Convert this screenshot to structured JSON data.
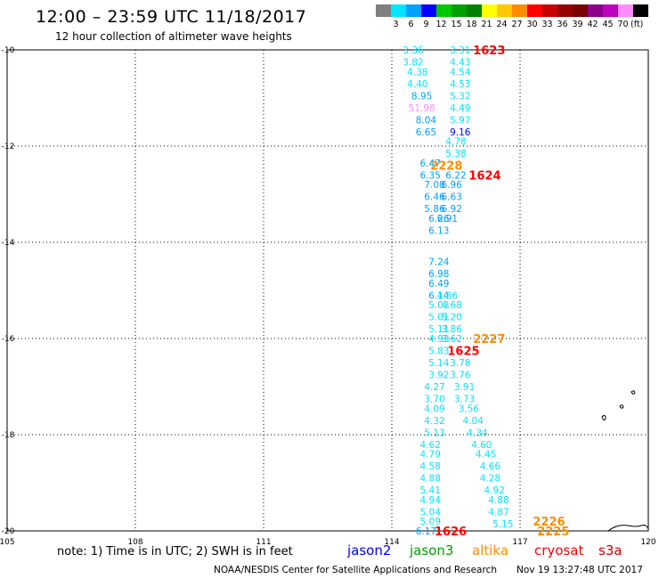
{
  "title": "12:00 – 23:59 UTC 11/18/2017",
  "subtitle": "12 hour collection of altimeter wave heights",
  "legend": {
    "unit": "(ft)",
    "colors": [
      "#7f7f7f",
      "#00e5ff",
      "#00a0ff",
      "#0000ff",
      "#00c800",
      "#00a000",
      "#008200",
      "#ffff00",
      "#ffc800",
      "#ff8c00",
      "#ff0000",
      "#c80000",
      "#960000",
      "#7a0000",
      "#8c008c",
      "#c000c0",
      "#ff8cff",
      "#000000"
    ],
    "labels": [
      "3",
      "6",
      "9",
      "12",
      "15",
      "18",
      "21",
      "24",
      "27",
      "30",
      "33",
      "36",
      "39",
      "42",
      "45",
      "70"
    ]
  },
  "axes": {
    "x_ticks": [
      "105",
      "108",
      "111",
      "114",
      "117",
      "120"
    ],
    "y_ticks": [
      "-10",
      "-12",
      "-14",
      "-16",
      "-18",
      "-20"
    ]
  },
  "note": "note: 1) Time is in UTC; 2) SWH is in feet",
  "satellites": [
    {
      "name": "jason2",
      "color": "#0000ff"
    },
    {
      "name": "jason3",
      "color": "#00a000"
    },
    {
      "name": "altika",
      "color": "#ff8c00"
    },
    {
      "name": "cryosat",
      "color": "#ff0000"
    },
    {
      "name": "s3a",
      "color": "#c80000"
    }
  ],
  "credit": "NOAA/NESDIS Center for Satellite Applications and Research",
  "timestamp": "Nov 19 13:27:48 UTC 2017",
  "track_times": [
    {
      "text": "1623",
      "lon": 115.9,
      "lat": -10.0,
      "color": "#ff0000"
    },
    {
      "text": "1624",
      "lon": 115.8,
      "lat": -12.6,
      "color": "#ff0000"
    },
    {
      "text": "2228",
      "lon": 114.9,
      "lat": -12.4,
      "color": "#ff8c00"
    },
    {
      "text": "2227",
      "lon": 115.9,
      "lat": -16.0,
      "color": "#ff8c00"
    },
    {
      "text": "1625",
      "lon": 115.3,
      "lat": -16.25,
      "color": "#ff0000"
    },
    {
      "text": "2226",
      "lon": 117.3,
      "lat": -19.8,
      "color": "#ff8c00"
    },
    {
      "text": "1626",
      "lon": 115.0,
      "lat": -20.0,
      "color": "#ff0000"
    },
    {
      "text": "2225",
      "lon": 117.4,
      "lat": -20.0,
      "color": "#ff8c00"
    }
  ],
  "chart_data": {
    "type": "scatter",
    "xlim": [
      105,
      120
    ],
    "ylim": [
      -20,
      -10
    ],
    "grid": true,
    "series": [
      {
        "values": [
          {
            "lon": 114.5,
            "lat": -10.0,
            "v": "3.36",
            "c": "#00e5ff"
          },
          {
            "lon": 114.5,
            "lat": -10.25,
            "v": "3.82",
            "c": "#00e5ff"
          },
          {
            "lon": 114.6,
            "lat": -10.45,
            "v": "4.38",
            "c": "#00e5ff"
          },
          {
            "lon": 114.6,
            "lat": -10.7,
            "v": "4.40",
            "c": "#00e5ff"
          },
          {
            "lon": 114.7,
            "lat": -10.95,
            "v": "8.95",
            "c": "#00a0ff"
          },
          {
            "lon": 114.7,
            "lat": -11.2,
            "v": "51.98",
            "c": "#ff8cff"
          },
          {
            "lon": 114.8,
            "lat": -11.45,
            "v": "8.04",
            "c": "#00a0ff"
          },
          {
            "lon": 114.8,
            "lat": -11.7,
            "v": "6.65",
            "c": "#00a0ff"
          },
          {
            "lon": 114.9,
            "lat": -12.35,
            "v": "6.47",
            "c": "#00a0ff"
          },
          {
            "lon": 114.9,
            "lat": -12.6,
            "v": "6.35",
            "c": "#00a0ff"
          },
          {
            "lon": 115.0,
            "lat": -12.8,
            "v": "7.08",
            "c": "#00a0ff"
          },
          {
            "lon": 115.0,
            "lat": -13.05,
            "v": "6.46",
            "c": "#00a0ff"
          },
          {
            "lon": 115.0,
            "lat": -13.3,
            "v": "5.86",
            "c": "#00a0ff"
          },
          {
            "lon": 115.1,
            "lat": -13.5,
            "v": "6.26",
            "c": "#00a0ff"
          },
          {
            "lon": 115.1,
            "lat": -13.75,
            "v": "6.13",
            "c": "#00a0ff"
          },
          {
            "lon": 115.1,
            "lat": -14.4,
            "v": "7.24",
            "c": "#00a0ff"
          },
          {
            "lon": 115.1,
            "lat": -14.65,
            "v": "6.98",
            "c": "#00a0ff"
          },
          {
            "lon": 115.1,
            "lat": -14.85,
            "v": "6.49",
            "c": "#00a0ff"
          },
          {
            "lon": 115.1,
            "lat": -15.1,
            "v": "6.14",
            "c": "#00a0ff"
          },
          {
            "lon": 115.1,
            "lat": -15.3,
            "v": "5.03",
            "c": "#00e5ff"
          },
          {
            "lon": 115.1,
            "lat": -15.55,
            "v": "5.01",
            "c": "#00e5ff"
          },
          {
            "lon": 115.1,
            "lat": -15.8,
            "v": "5.11",
            "c": "#00e5ff"
          },
          {
            "lon": 115.1,
            "lat": -16.0,
            "v": "4.93",
            "c": "#00e5ff"
          },
          {
            "lon": 115.1,
            "lat": -16.25,
            "v": "5.83",
            "c": "#00e5ff"
          },
          {
            "lon": 115.1,
            "lat": -16.5,
            "v": "5.14",
            "c": "#00e5ff"
          },
          {
            "lon": 115.1,
            "lat": -16.75,
            "v": "3.92",
            "c": "#00e5ff"
          },
          {
            "lon": 115.0,
            "lat": -17.0,
            "v": "4.27",
            "c": "#00e5ff"
          },
          {
            "lon": 115.0,
            "lat": -17.25,
            "v": "3.70",
            "c": "#00e5ff"
          },
          {
            "lon": 115.0,
            "lat": -17.45,
            "v": "4.09",
            "c": "#00e5ff"
          },
          {
            "lon": 115.0,
            "lat": -17.7,
            "v": "4.32",
            "c": "#00e5ff"
          },
          {
            "lon": 115.0,
            "lat": -17.95,
            "v": "5.13",
            "c": "#00e5ff"
          },
          {
            "lon": 114.9,
            "lat": -18.2,
            "v": "4.62",
            "c": "#00e5ff"
          },
          {
            "lon": 114.9,
            "lat": -18.4,
            "v": "4.79",
            "c": "#00e5ff"
          },
          {
            "lon": 114.9,
            "lat": -18.65,
            "v": "4.58",
            "c": "#00e5ff"
          },
          {
            "lon": 114.9,
            "lat": -18.9,
            "v": "4.88",
            "c": "#00e5ff"
          },
          {
            "lon": 114.9,
            "lat": -19.15,
            "v": "5.41",
            "c": "#00e5ff"
          },
          {
            "lon": 114.9,
            "lat": -19.35,
            "v": "4.94",
            "c": "#00e5ff"
          },
          {
            "lon": 114.9,
            "lat": -19.6,
            "v": "5.04",
            "c": "#00e5ff"
          },
          {
            "lon": 114.9,
            "lat": -19.8,
            "v": "5.09",
            "c": "#00e5ff"
          },
          {
            "lon": 114.8,
            "lat": -20.0,
            "v": "6.17",
            "c": "#00a0ff"
          },
          {
            "lon": 115.6,
            "lat": -10.0,
            "v": "3.31",
            "c": "#00e5ff"
          },
          {
            "lon": 115.6,
            "lat": -10.25,
            "v": "4.43",
            "c": "#00e5ff"
          },
          {
            "lon": 115.6,
            "lat": -10.45,
            "v": "4.54",
            "c": "#00e5ff"
          },
          {
            "lon": 115.6,
            "lat": -10.7,
            "v": "4.53",
            "c": "#00e5ff"
          },
          {
            "lon": 115.6,
            "lat": -10.95,
            "v": "5.32",
            "c": "#00e5ff"
          },
          {
            "lon": 115.6,
            "lat": -11.2,
            "v": "4.49",
            "c": "#00e5ff"
          },
          {
            "lon": 115.6,
            "lat": -11.45,
            "v": "5.97",
            "c": "#00e5ff"
          },
          {
            "lon": 115.6,
            "lat": -11.7,
            "v": "9.16",
            "c": "#0000ff"
          },
          {
            "lon": 115.5,
            "lat": -11.9,
            "v": "4.78",
            "c": "#00e5ff"
          },
          {
            "lon": 115.5,
            "lat": -12.15,
            "v": "5.38",
            "c": "#00e5ff"
          },
          {
            "lon": 115.5,
            "lat": -12.6,
            "v": "6.22",
            "c": "#00a0ff"
          },
          {
            "lon": 115.4,
            "lat": -12.8,
            "v": "6.96",
            "c": "#00a0ff"
          },
          {
            "lon": 115.4,
            "lat": -13.05,
            "v": "6.63",
            "c": "#00a0ff"
          },
          {
            "lon": 115.4,
            "lat": -13.3,
            "v": "6.92",
            "c": "#00a0ff"
          },
          {
            "lon": 115.3,
            "lat": -13.5,
            "v": "6.91",
            "c": "#00a0ff"
          },
          {
            "lon": 115.3,
            "lat": -15.1,
            "v": "4.86",
            "c": "#00e5ff"
          },
          {
            "lon": 115.4,
            "lat": -15.3,
            "v": "4.68",
            "c": "#00e5ff"
          },
          {
            "lon": 115.4,
            "lat": -15.55,
            "v": "5.20",
            "c": "#00e5ff"
          },
          {
            "lon": 115.4,
            "lat": -15.8,
            "v": "3.86",
            "c": "#00e5ff"
          },
          {
            "lon": 115.4,
            "lat": -16.0,
            "v": "3.62",
            "c": "#00e5ff"
          },
          {
            "lon": 115.6,
            "lat": -16.5,
            "v": "3.78",
            "c": "#00e5ff"
          },
          {
            "lon": 115.6,
            "lat": -16.75,
            "v": "3.76",
            "c": "#00e5ff"
          },
          {
            "lon": 115.7,
            "lat": -17.0,
            "v": "3.91",
            "c": "#00e5ff"
          },
          {
            "lon": 115.7,
            "lat": -17.25,
            "v": "3.73",
            "c": "#00e5ff"
          },
          {
            "lon": 115.8,
            "lat": -17.45,
            "v": "3.56",
            "c": "#00e5ff"
          },
          {
            "lon": 115.9,
            "lat": -17.7,
            "v": "4.04",
            "c": "#00e5ff"
          },
          {
            "lon": 116.0,
            "lat": -17.95,
            "v": "4.34",
            "c": "#00e5ff"
          },
          {
            "lon": 116.1,
            "lat": -18.2,
            "v": "4.60",
            "c": "#00e5ff"
          },
          {
            "lon": 116.2,
            "lat": -18.4,
            "v": "4.45",
            "c": "#00e5ff"
          },
          {
            "lon": 116.3,
            "lat": -18.65,
            "v": "4.66",
            "c": "#00e5ff"
          },
          {
            "lon": 116.3,
            "lat": -18.9,
            "v": "4.28",
            "c": "#00e5ff"
          },
          {
            "lon": 116.4,
            "lat": -19.15,
            "v": "4.92",
            "c": "#00e5ff"
          },
          {
            "lon": 116.5,
            "lat": -19.35,
            "v": "4.88",
            "c": "#00e5ff"
          },
          {
            "lon": 116.5,
            "lat": -19.6,
            "v": "4.87",
            "c": "#00e5ff"
          },
          {
            "lon": 116.6,
            "lat": -19.85,
            "v": "5.15",
            "c": "#00e5ff"
          }
        ]
      }
    ]
  }
}
